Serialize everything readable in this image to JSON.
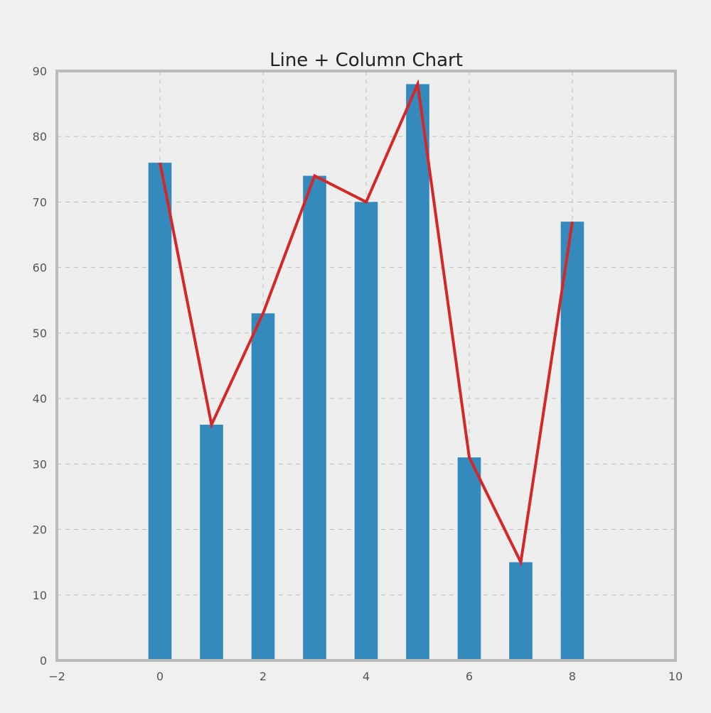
{
  "chart_data": {
    "type": "bar+line",
    "title": "Line + Column Chart",
    "xlabel": "",
    "ylabel": "",
    "xlim": [
      -2,
      10
    ],
    "ylim": [
      0,
      90
    ],
    "x_ticks": [
      -2,
      0,
      2,
      4,
      6,
      8,
      10
    ],
    "x_tick_labels": [
      "−2",
      "0",
      "2",
      "4",
      "6",
      "8",
      "10"
    ],
    "y_ticks": [
      0,
      10,
      20,
      30,
      40,
      50,
      60,
      70,
      80,
      90
    ],
    "y_tick_labels": [
      "0",
      "10",
      "20",
      "30",
      "40",
      "50",
      "60",
      "70",
      "80",
      "90"
    ],
    "grid": true,
    "x": [
      0,
      1,
      2,
      3,
      4,
      5,
      6,
      7,
      8
    ],
    "series": [
      {
        "type": "bar",
        "values": [
          76,
          36,
          53,
          74,
          70,
          88,
          31,
          15,
          67
        ],
        "color": "#348abd"
      },
      {
        "type": "line",
        "values": [
          76,
          36,
          53,
          74,
          70,
          88,
          31,
          15,
          67
        ],
        "color": "#d62728"
      }
    ]
  },
  "colors": {
    "background": "#f0f0f0",
    "plot_background": "#eeeeee",
    "frame": "#bbbbbb",
    "grid": "#c0c0c0"
  }
}
